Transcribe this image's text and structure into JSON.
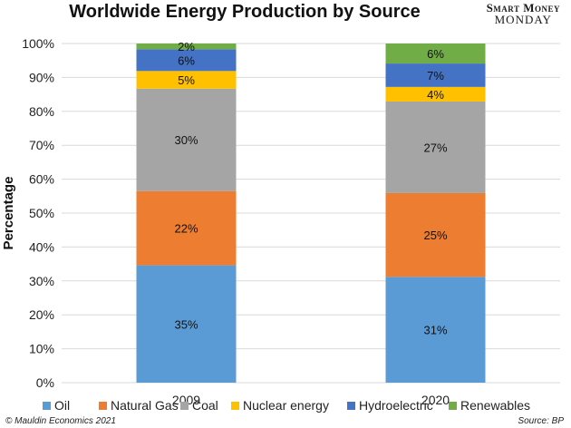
{
  "chart_data": {
    "type": "bar",
    "stacked": true,
    "title": "Worldwide Energy Production by Source",
    "ylabel": "Percentage",
    "xlabel": "",
    "ylim": [
      0,
      100
    ],
    "yticks": [
      "0%",
      "10%",
      "20%",
      "30%",
      "40%",
      "50%",
      "60%",
      "70%",
      "80%",
      "90%",
      "100%"
    ],
    "categories": [
      "2009",
      "2020"
    ],
    "grid": true,
    "legend_position": "bottom",
    "series": [
      {
        "name": "Oil",
        "color": "#5b9bd5",
        "values": [
          34.6,
          31.2
        ],
        "labels": [
          "35%",
          "31%"
        ]
      },
      {
        "name": "Natural Gas",
        "color": "#ed7d31",
        "values": [
          21.9,
          24.7
        ],
        "labels": [
          "22%",
          "25%"
        ]
      },
      {
        "name": "Coal",
        "color": "#a5a5a5",
        "values": [
          30.2,
          27.0
        ],
        "labels": [
          "30%",
          "27%"
        ]
      },
      {
        "name": "Nuclear energy",
        "color": "#ffc000",
        "values": [
          5.2,
          4.3
        ],
        "labels": [
          "5%",
          "4%"
        ]
      },
      {
        "name": "Hydroelectric",
        "color": "#4472c4",
        "values": [
          6.4,
          6.9
        ],
        "labels": [
          "6%",
          "7%"
        ]
      },
      {
        "name": "Renewables",
        "color": "#70ad47",
        "values": [
          1.7,
          5.9
        ],
        "labels": [
          "2%",
          "6%"
        ]
      }
    ]
  },
  "brand": {
    "line1": "Smart Money",
    "line2": "MONDAY"
  },
  "footer": {
    "copyright": "© Mauldin Economics 2021",
    "source": "Source: BP"
  }
}
